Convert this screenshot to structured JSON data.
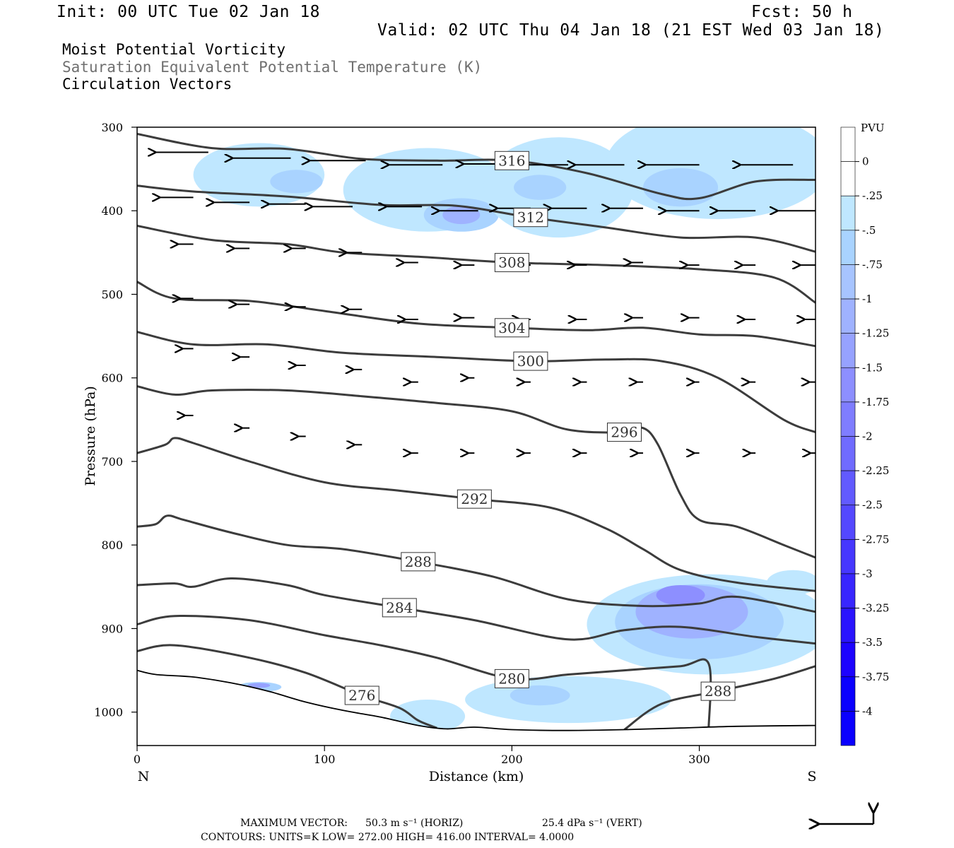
{
  "header": {
    "init": "Init: 00 UTC Tue 02 Jan 18",
    "fcst": "Fcst:   50 h",
    "valid": "Valid: 02 UTC Thu 04 Jan 18 (21 EST Wed 03 Jan 18)"
  },
  "fields": {
    "field1": "Moist Potential Vorticity",
    "field2": "Saturation Equivalent Potential Temperature (K)",
    "field3": "Circulation Vectors"
  },
  "footer": {
    "max_vector_label": "MAXIMUM VECTOR:",
    "horiz": "50.3 m s⁻¹ (HORIZ)",
    "vert": "25.4 dPa s⁻¹ (VERT)",
    "contours": "CONTOURS:  UNITS=K  LOW=  272.00       HIGH=  416.00       INTERVAL=    4.0000"
  },
  "colors": {
    "contour": "#3c3c3c",
    "fill_levels": [
      "#ffffff",
      "#ffffff",
      "#bfe7ff",
      "#a9d3ff",
      "#a7c4ff",
      "#9fb2ff",
      "#96a2ff",
      "#8d8fff",
      "#7f7dff",
      "#706bff",
      "#625aff",
      "#5448ff",
      "#4637ff",
      "#3826ff",
      "#2a14ff",
      "#1c03ff",
      "#0a00ff"
    ]
  },
  "chart_data": {
    "type": "cross-section",
    "xlabel": "Distance (km)",
    "ylabel": "Pressure (hPa)",
    "xlim": [
      0,
      362
    ],
    "ylim": [
      1040,
      300
    ],
    "x_ticks": [
      0,
      100,
      200,
      300
    ],
    "y_ticks": [
      300,
      400,
      500,
      600,
      700,
      800,
      900,
      1000
    ],
    "x_end_labels": {
      "left": "N",
      "right": "S"
    },
    "colorbar": {
      "unit": "PVU",
      "levels": [
        "0",
        "-.25",
        "-.5",
        "-.75",
        "-1",
        "-1.25",
        "-1.5",
        "-1.75",
        "-2",
        "-2.25",
        "-2.5",
        "-2.75",
        "-3",
        "-3.25",
        "-3.5",
        "-3.75",
        "-4"
      ]
    },
    "terrain": [
      [
        0,
        950
      ],
      [
        10,
        955
      ],
      [
        30,
        958
      ],
      [
        50,
        965
      ],
      [
        70,
        975
      ],
      [
        90,
        988
      ],
      [
        110,
        998
      ],
      [
        130,
        1006
      ],
      [
        150,
        1016
      ],
      [
        165,
        1020
      ],
      [
        180,
        1018
      ],
      [
        200,
        1021
      ],
      [
        230,
        1022
      ],
      [
        260,
        1021
      ],
      [
        290,
        1019
      ],
      [
        320,
        1017
      ],
      [
        362,
        1016
      ]
    ],
    "isentropes": [
      {
        "value": 316,
        "points": [
          [
            0,
            308
          ],
          [
            40,
            325
          ],
          [
            80,
            326
          ],
          [
            120,
            338
          ],
          [
            160,
            340
          ],
          [
            200,
            340
          ],
          [
            240,
            355
          ],
          [
            280,
            380
          ],
          [
            300,
            385
          ],
          [
            330,
            365
          ],
          [
            362,
            363
          ]
        ]
      },
      {
        "value": 312,
        "points": [
          [
            0,
            370
          ],
          [
            30,
            377
          ],
          [
            80,
            383
          ],
          [
            130,
            393
          ],
          [
            170,
            394
          ],
          [
            210,
            408
          ],
          [
            250,
            420
          ],
          [
            290,
            432
          ],
          [
            330,
            432
          ],
          [
            362,
            449
          ]
        ]
      },
      {
        "value": 308,
        "points": [
          [
            0,
            418
          ],
          [
            40,
            435
          ],
          [
            80,
            440
          ],
          [
            110,
            450
          ],
          [
            150,
            455
          ],
          [
            200,
            462
          ],
          [
            250,
            465
          ],
          [
            300,
            470
          ],
          [
            340,
            480
          ],
          [
            362,
            510
          ]
        ]
      },
      {
        "value": 304,
        "points": [
          [
            0,
            485
          ],
          [
            20,
            505
          ],
          [
            60,
            508
          ],
          [
            100,
            520
          ],
          [
            150,
            535
          ],
          [
            200,
            540
          ],
          [
            240,
            543
          ],
          [
            270,
            540
          ],
          [
            300,
            548
          ],
          [
            330,
            550
          ],
          [
            362,
            562
          ]
        ]
      },
      {
        "value": 300,
        "points": [
          [
            0,
            545
          ],
          [
            30,
            560
          ],
          [
            70,
            560
          ],
          [
            110,
            570
          ],
          [
            160,
            575
          ],
          [
            210,
            580
          ],
          [
            250,
            578
          ],
          [
            280,
            580
          ],
          [
            310,
            600
          ],
          [
            345,
            650
          ],
          [
            362,
            665
          ]
        ]
      },
      {
        "value": 296,
        "points": [
          [
            0,
            610
          ],
          [
            20,
            620
          ],
          [
            40,
            615
          ],
          [
            80,
            615
          ],
          [
            120,
            622
          ],
          [
            160,
            630
          ],
          [
            200,
            640
          ],
          [
            230,
            662
          ],
          [
            260,
            665
          ],
          [
            270,
            660
          ],
          [
            278,
            680
          ],
          [
            290,
            740
          ],
          [
            300,
            770
          ],
          [
            320,
            778
          ],
          [
            345,
            800
          ],
          [
            362,
            815
          ]
        ]
      },
      {
        "value": 292,
        "points": [
          [
            0,
            690
          ],
          [
            15,
            680
          ],
          [
            20,
            672
          ],
          [
            30,
            678
          ],
          [
            60,
            700
          ],
          [
            100,
            725
          ],
          [
            140,
            735
          ],
          [
            180,
            745
          ],
          [
            220,
            755
          ],
          [
            250,
            780
          ],
          [
            270,
            805
          ],
          [
            290,
            830
          ],
          [
            320,
            845
          ],
          [
            362,
            855
          ]
        ]
      },
      {
        "value": 288,
        "points": [
          [
            0,
            778
          ],
          [
            10,
            775
          ],
          [
            16,
            765
          ],
          [
            25,
            770
          ],
          [
            50,
            785
          ],
          [
            80,
            800
          ],
          [
            110,
            805
          ],
          [
            150,
            820
          ],
          [
            190,
            838
          ],
          [
            230,
            865
          ],
          [
            270,
            873
          ],
          [
            300,
            870
          ],
          [
            320,
            862
          ],
          [
            362,
            880
          ]
        ]
      },
      {
        "value": 284,
        "points": [
          [
            0,
            848
          ],
          [
            20,
            846
          ],
          [
            30,
            850
          ],
          [
            50,
            840
          ],
          [
            80,
            848
          ],
          [
            100,
            860
          ],
          [
            140,
            875
          ],
          [
            180,
            890
          ],
          [
            230,
            913
          ],
          [
            260,
            902
          ],
          [
            290,
            898
          ],
          [
            330,
            910
          ],
          [
            362,
            918
          ]
        ]
      },
      {
        "value": 280,
        "points": [
          [
            0,
            895
          ],
          [
            20,
            885
          ],
          [
            60,
            890
          ],
          [
            100,
            908
          ],
          [
            130,
            920
          ],
          [
            160,
            935
          ],
          [
            200,
            960
          ],
          [
            230,
            955
          ],
          [
            260,
            950
          ],
          [
            290,
            945
          ],
          [
            305,
            942
          ],
          [
            305,
            1020
          ]
        ]
      },
      {
        "value": 276,
        "points": [
          [
            0,
            927
          ],
          [
            20,
            920
          ],
          [
            60,
            935
          ],
          [
            90,
            953
          ],
          [
            120,
            980
          ],
          [
            140,
            995
          ],
          [
            150,
            1010
          ],
          [
            160,
            1019
          ]
        ]
      },
      {
        "value": 288,
        "points": [
          [
            260,
            1021
          ],
          [
            280,
            990
          ],
          [
            310,
            975
          ],
          [
            340,
            960
          ],
          [
            362,
            945
          ]
        ]
      }
    ],
    "pv_regions": [
      {
        "level": "-.25",
        "center": [
          65,
          357
        ],
        "radii": [
          35,
          38
        ]
      },
      {
        "level": "-.5",
        "center": [
          85,
          365
        ],
        "radii": [
          14,
          14
        ]
      },
      {
        "level": "-.25",
        "center": [
          155,
          375
        ],
        "radii": [
          45,
          50
        ]
      },
      {
        "level": "-.5",
        "center": [
          173,
          405
        ],
        "radii": [
          20,
          20
        ]
      },
      {
        "level": "-1",
        "center": [
          173,
          405
        ],
        "radii": [
          10,
          11
        ]
      },
      {
        "level": "-.25",
        "center": [
          225,
          372
        ],
        "radii": [
          40,
          60
        ]
      },
      {
        "level": "-.5",
        "center": [
          215,
          372
        ],
        "radii": [
          14,
          15
        ]
      },
      {
        "level": "-.25",
        "center": [
          310,
          345
        ],
        "radii": [
          60,
          65
        ]
      },
      {
        "level": "-.5",
        "center": [
          290,
          372
        ],
        "radii": [
          20,
          23
        ]
      },
      {
        "level": "-.25",
        "center": [
          305,
          895
        ],
        "radii": [
          65,
          60
        ]
      },
      {
        "level": "-.5",
        "center": [
          300,
          892
        ],
        "radii": [
          45,
          45
        ]
      },
      {
        "level": "-1",
        "center": [
          296,
          880
        ],
        "radii": [
          30,
          32
        ]
      },
      {
        "level": "-1.5",
        "center": [
          290,
          860
        ],
        "radii": [
          13,
          12
        ]
      },
      {
        "level": "-.25",
        "center": [
          230,
          985
        ],
        "radii": [
          55,
          28
        ]
      },
      {
        "level": "-.5",
        "center": [
          215,
          980
        ],
        "radii": [
          16,
          12
        ]
      },
      {
        "level": "-.25",
        "center": [
          155,
          1005
        ],
        "radii": [
          20,
          20
        ]
      },
      {
        "level": "-.25",
        "center": [
          350,
          845
        ],
        "radii": [
          14,
          15
        ]
      },
      {
        "level": "-.5",
        "center": [
          65,
          970
        ],
        "radii": [
          12,
          6
        ]
      },
      {
        "level": "-1.25",
        "center": [
          65,
          968
        ],
        "radii": [
          6,
          3
        ]
      }
    ],
    "vectors": [
      {
        "x": 38,
        "p": 330,
        "u": -47,
        "w": 0
      },
      {
        "x": 82,
        "p": 337,
        "u": -52,
        "w": 0
      },
      {
        "x": 122,
        "p": 340,
        "u": -50,
        "w": 0
      },
      {
        "x": 163,
        "p": 345,
        "u": -48,
        "w": 0
      },
      {
        "x": 198,
        "p": 344,
        "u": -40,
        "w": 0
      },
      {
        "x": 230,
        "p": 345,
        "u": -44,
        "w": 0
      },
      {
        "x": 260,
        "p": 345,
        "u": -44,
        "w": 0
      },
      {
        "x": 300,
        "p": 345,
        "u": -48,
        "w": 0
      },
      {
        "x": 350,
        "p": 345,
        "u": -47,
        "w": 0
      },
      {
        "x": 30,
        "p": 384,
        "u": -30,
        "w": 0
      },
      {
        "x": 60,
        "p": 390,
        "u": -32,
        "w": 0
      },
      {
        "x": 90,
        "p": 392,
        "u": -33,
        "w": 0
      },
      {
        "x": 115,
        "p": 395,
        "u": -36,
        "w": 0
      },
      {
        "x": 152,
        "p": 395,
        "u": -32,
        "w": 0
      },
      {
        "x": 182,
        "p": 400,
        "u": -35,
        "w": 0
      },
      {
        "x": 210,
        "p": 397,
        "u": -30,
        "w": 0
      },
      {
        "x": 240,
        "p": 397,
        "u": -32,
        "w": 0
      },
      {
        "x": 270,
        "p": 397,
        "u": -30,
        "w": 0
      },
      {
        "x": 300,
        "p": 400,
        "u": -30,
        "w": 0
      },
      {
        "x": 330,
        "p": 400,
        "u": -34,
        "w": 0
      },
      {
        "x": 362,
        "p": 400,
        "u": -34,
        "w": 0
      },
      {
        "x": 30,
        "p": 440,
        "u": -14,
        "w": 0
      },
      {
        "x": 60,
        "p": 445,
        "u": -14,
        "w": 0
      },
      {
        "x": 90,
        "p": 445,
        "u": -13,
        "w": 0
      },
      {
        "x": 120,
        "p": 450,
        "u": -14,
        "w": 0
      },
      {
        "x": 150,
        "p": 462,
        "u": -13,
        "w": 0
      },
      {
        "x": 180,
        "p": 465,
        "u": -12,
        "w": 0
      },
      {
        "x": 210,
        "p": 465,
        "u": -12,
        "w": 0
      },
      {
        "x": 240,
        "p": 465,
        "u": -11,
        "w": 0
      },
      {
        "x": 270,
        "p": 462,
        "u": -11,
        "w": 0
      },
      {
        "x": 300,
        "p": 465,
        "u": -11,
        "w": 0
      },
      {
        "x": 330,
        "p": 465,
        "u": -12,
        "w": 0
      },
      {
        "x": 362,
        "p": 465,
        "u": -14,
        "w": 0
      },
      {
        "x": 30,
        "p": 505,
        "u": -12,
        "w": 0
      },
      {
        "x": 60,
        "p": 512,
        "u": -12,
        "w": 0
      },
      {
        "x": 90,
        "p": 515,
        "u": -12,
        "w": 0
      },
      {
        "x": 120,
        "p": 518,
        "u": -12,
        "w": 0
      },
      {
        "x": 150,
        "p": 530,
        "u": -12,
        "w": 0
      },
      {
        "x": 180,
        "p": 528,
        "u": -12,
        "w": 0
      },
      {
        "x": 210,
        "p": 530,
        "u": -10,
        "w": 0
      },
      {
        "x": 240,
        "p": 530,
        "u": -10,
        "w": 0
      },
      {
        "x": 270,
        "p": 528,
        "u": -10,
        "w": 0
      },
      {
        "x": 300,
        "p": 528,
        "u": -10,
        "w": 0
      },
      {
        "x": 330,
        "p": 530,
        "u": -10,
        "w": 0
      },
      {
        "x": 362,
        "p": 530,
        "u": -10,
        "w": 0
      },
      {
        "x": 30,
        "p": 565,
        "u": -10,
        "w": 0
      },
      {
        "x": 60,
        "p": 575,
        "u": -9,
        "w": 0
      },
      {
        "x": 90,
        "p": 585,
        "u": -9,
        "w": 0
      },
      {
        "x": 120,
        "p": 590,
        "u": -8,
        "w": 0
      },
      {
        "x": 150,
        "p": 605,
        "u": -7,
        "w": 0
      },
      {
        "x": 180,
        "p": 600,
        "u": -6,
        "w": 0
      },
      {
        "x": 210,
        "p": 605,
        "u": -6,
        "w": 0
      },
      {
        "x": 240,
        "p": 605,
        "u": -6,
        "w": 0
      },
      {
        "x": 270,
        "p": 605,
        "u": -6,
        "w": 0
      },
      {
        "x": 300,
        "p": 605,
        "u": -5,
        "w": 0
      },
      {
        "x": 330,
        "p": 605,
        "u": -6,
        "w": 0
      },
      {
        "x": 362,
        "p": 605,
        "u": -6,
        "w": 0
      },
      {
        "x": 30,
        "p": 645,
        "u": -8,
        "w": 0
      },
      {
        "x": 60,
        "p": 660,
        "u": -7,
        "w": 0
      },
      {
        "x": 90,
        "p": 670,
        "u": -7,
        "w": 0
      },
      {
        "x": 120,
        "p": 680,
        "u": -7,
        "w": 0
      },
      {
        "x": 150,
        "p": 690,
        "u": -7,
        "w": 0
      },
      {
        "x": 180,
        "p": 690,
        "u": -6,
        "w": 0
      },
      {
        "x": 210,
        "p": 690,
        "u": -6,
        "w": 0
      },
      {
        "x": 240,
        "p": 690,
        "u": -6,
        "w": 0
      },
      {
        "x": 270,
        "p": 690,
        "u": -5,
        "w": 0
      },
      {
        "x": 300,
        "p": 690,
        "u": -5,
        "w": 0
      },
      {
        "x": 330,
        "p": 690,
        "u": -5,
        "w": 0
      },
      {
        "x": 362,
        "p": 690,
        "u": -5,
        "w": 0
      }
    ]
  }
}
